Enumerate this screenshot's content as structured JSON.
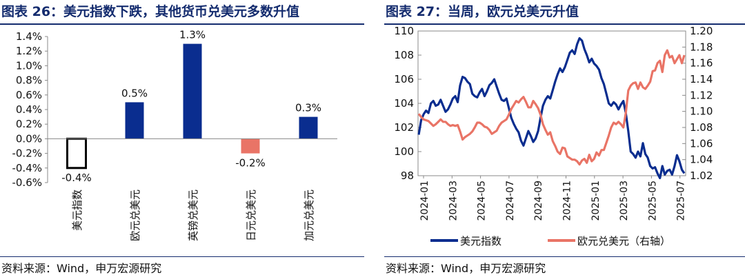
{
  "left": {
    "title": "图表 26：美元指数下跌，其他货币兑美元多数升值",
    "source": "资料来源：Wind，申万宏源研究"
  },
  "right": {
    "title": "图表 27：当周，欧元兑美元升值",
    "source": "资料来源：Wind，申万宏源研究"
  },
  "chart_data": [
    {
      "type": "bar",
      "categories": [
        "美元指数",
        "欧元兑美元",
        "英镑兑美元",
        "日元兑美元",
        "加元兑美元"
      ],
      "values": [
        -0.4,
        0.5,
        1.3,
        -0.2,
        0.3
      ],
      "data_labels": [
        "-0.4%",
        "0.5%",
        "1.3%",
        "-0.2%",
        "0.3%"
      ],
      "bar_colors": [
        "#ffffff",
        "#0a2d8f",
        "#0a2d8f",
        "#e97466",
        "#0a2d8f"
      ],
      "yticks": [
        "1.4%",
        "1.2%",
        "1.0%",
        "0.8%",
        "0.6%",
        "0.4%",
        "0.2%",
        "0.0%",
        "-0.2%",
        "-0.4%",
        "-0.6%"
      ],
      "ylim": [
        -0.6,
        1.4
      ]
    },
    {
      "type": "line",
      "xticks": [
        "2024-01",
        "2024-03",
        "2024-05",
        "2024-07",
        "2024-09",
        "2024-11",
        "2025-01",
        "2025-03",
        "2025-05",
        "2025-07"
      ],
      "y_left": {
        "ticks": [
          "110",
          "108",
          "106",
          "104",
          "102",
          "100",
          "98"
        ],
        "lim": [
          98,
          110
        ]
      },
      "y_right": {
        "ticks": [
          "1.20",
          "1.18",
          "1.16",
          "1.14",
          "1.12",
          "1.10",
          "1.08",
          "1.06",
          "1.04",
          "1.02"
        ],
        "lim": [
          1.02,
          1.2
        ]
      },
      "series": [
        {
          "name": "美元指数",
          "axis": "left",
          "color": "#0a2d8f",
          "values": [
            101.4,
            102.6,
            103.1,
            103.4,
            103.2,
            104.0,
            104.2,
            103.8,
            103.9,
            104.3,
            103.8,
            103.3,
            103.5,
            103.9,
            104.4,
            104.6,
            104.1,
            105.5,
            106.2,
            106.1,
            105.8,
            105.6,
            104.8,
            104.6,
            104.5,
            104.9,
            105.2,
            104.6,
            105.0,
            105.5,
            105.7,
            106.0,
            105.4,
            104.8,
            104.3,
            104.2,
            104.4,
            103.6,
            102.8,
            102.3,
            101.9,
            101.6,
            100.9,
            100.5,
            101.1,
            101.7,
            101.3,
            100.8,
            101.1,
            101.7,
            102.8,
            103.8,
            104.3,
            104.6,
            104.4,
            105.1,
            105.8,
            106.4,
            106.9,
            106.6,
            107.0,
            107.6,
            108.2,
            108.4,
            108.1,
            108.9,
            109.4,
            109.2,
            108.5,
            108.0,
            107.4,
            107.7,
            107.3,
            107.1,
            106.8,
            106.1,
            105.6,
            104.8,
            104.0,
            103.8,
            104.1,
            103.9,
            103.5,
            103.9,
            104.2,
            103.2,
            101.7,
            100.0,
            99.8,
            99.5,
            100.0,
            99.6,
            100.7,
            99.8,
            99.5,
            98.8,
            98.6,
            98.7,
            98.2,
            97.8,
            98.8,
            98.1,
            98.4,
            98.5,
            98.1,
            98.8,
            99.7,
            99.2,
            98.5,
            98.2
          ]
        },
        {
          "name": "欧元兑美元（右轴）",
          "axis": "right",
          "color": "#e97466",
          "values": [
            1.097,
            1.093,
            1.09,
            1.089,
            1.088,
            1.085,
            1.082,
            1.084,
            1.087,
            1.09,
            1.087,
            1.087,
            1.084,
            1.082,
            1.083,
            1.082,
            1.083,
            1.075,
            1.065,
            1.068,
            1.07,
            1.072,
            1.075,
            1.08,
            1.086,
            1.086,
            1.084,
            1.081,
            1.08,
            1.077,
            1.072,
            1.074,
            1.076,
            1.082,
            1.086,
            1.088,
            1.09,
            1.096,
            1.103,
            1.108,
            1.113,
            1.111,
            1.115,
            1.118,
            1.112,
            1.105,
            1.105,
            1.113,
            1.109,
            1.104,
            1.096,
            1.084,
            1.077,
            1.071,
            1.074,
            1.063,
            1.057,
            1.05,
            1.047,
            1.055,
            1.054,
            1.044,
            1.042,
            1.04,
            1.04,
            1.038,
            1.034,
            1.039,
            1.041,
            1.036,
            1.046,
            1.038,
            1.041,
            1.049,
            1.045,
            1.052,
            1.052,
            1.061,
            1.07,
            1.08,
            1.086,
            1.084,
            1.087,
            1.084,
            1.08,
            1.098,
            1.126,
            1.132,
            1.135,
            1.136,
            1.128,
            1.136,
            1.13,
            1.128,
            1.132,
            1.137,
            1.15,
            1.151,
            1.16,
            1.163,
            1.149,
            1.17,
            1.176,
            1.167,
            1.169,
            1.16,
            1.165,
            1.17,
            1.16,
            1.17
          ]
        }
      ]
    }
  ]
}
